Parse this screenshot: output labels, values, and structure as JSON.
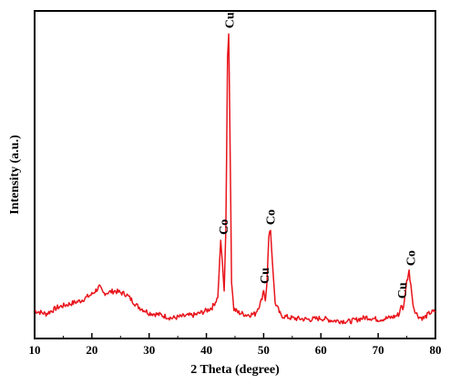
{
  "chart_data": {
    "type": "line",
    "title": "",
    "xlabel": "2 Theta (degree)",
    "ylabel": "Intensity (a.u.)",
    "xlim": [
      10,
      80
    ],
    "ylim": [
      0,
      100
    ],
    "x_ticks": [
      "10",
      "20",
      "30",
      "40",
      "50",
      "60",
      "70",
      "80"
    ],
    "y_ticks_shown": false,
    "grid": false,
    "legend": "none",
    "line_color": "#e8141b",
    "series": [
      {
        "x": [
          10,
          12,
          14,
          16,
          18,
          20,
          21,
          21.3,
          22,
          24,
          26,
          28,
          30,
          32,
          34,
          36,
          38,
          40,
          41,
          42,
          42.5,
          42.8,
          43.1,
          43.4,
          43.7,
          43.9,
          44.1,
          44.4,
          44.8,
          45.5,
          47,
          48.5,
          49.6,
          50.0,
          50.3,
          50.6,
          50.9,
          51.2,
          51.5,
          52,
          53,
          55,
          58,
          60,
          62,
          65,
          68,
          70,
          72,
          73,
          73.7,
          74.0,
          74.3,
          74.6,
          75.0,
          75.4,
          75.7,
          76.1,
          76.6,
          77.2,
          78,
          79,
          80
        ],
        "y": [
          8.5,
          7.5,
          9.5,
          10.5,
          11.5,
          13.5,
          15.2,
          15.8,
          13.8,
          14.5,
          13.5,
          9.8,
          7.8,
          7.2,
          6.2,
          6.8,
          7.2,
          8.5,
          9.5,
          12.5,
          30.0,
          23.0,
          14.5,
          33.0,
          86.0,
          93.0,
          66.0,
          17.0,
          9.0,
          8.0,
          7.2,
          7.5,
          11.5,
          15.0,
          11.5,
          17.5,
          31.5,
          33.0,
          24.0,
          11.0,
          7.0,
          6.2,
          5.8,
          6.2,
          5.5,
          5.2,
          6.5,
          5.8,
          6.3,
          6.8,
          7.5,
          10.5,
          8.5,
          12.0,
          17.5,
          20.5,
          16.5,
          10.2,
          7.8,
          6.5,
          6.2,
          7.8,
          8.3
        ]
      }
    ],
    "annotations": [
      {
        "text": "Cu",
        "x": 43.95,
        "y": 93
      },
      {
        "text": "Co",
        "x": 42.9,
        "y": 30
      },
      {
        "text": "Cu",
        "x": 50.1,
        "y": 15
      },
      {
        "text": "Co",
        "x": 51.1,
        "y": 33
      },
      {
        "text": "Cu",
        "x": 74.1,
        "y": 10.5
      },
      {
        "text": "Co",
        "x": 75.6,
        "y": 20.5
      }
    ]
  }
}
